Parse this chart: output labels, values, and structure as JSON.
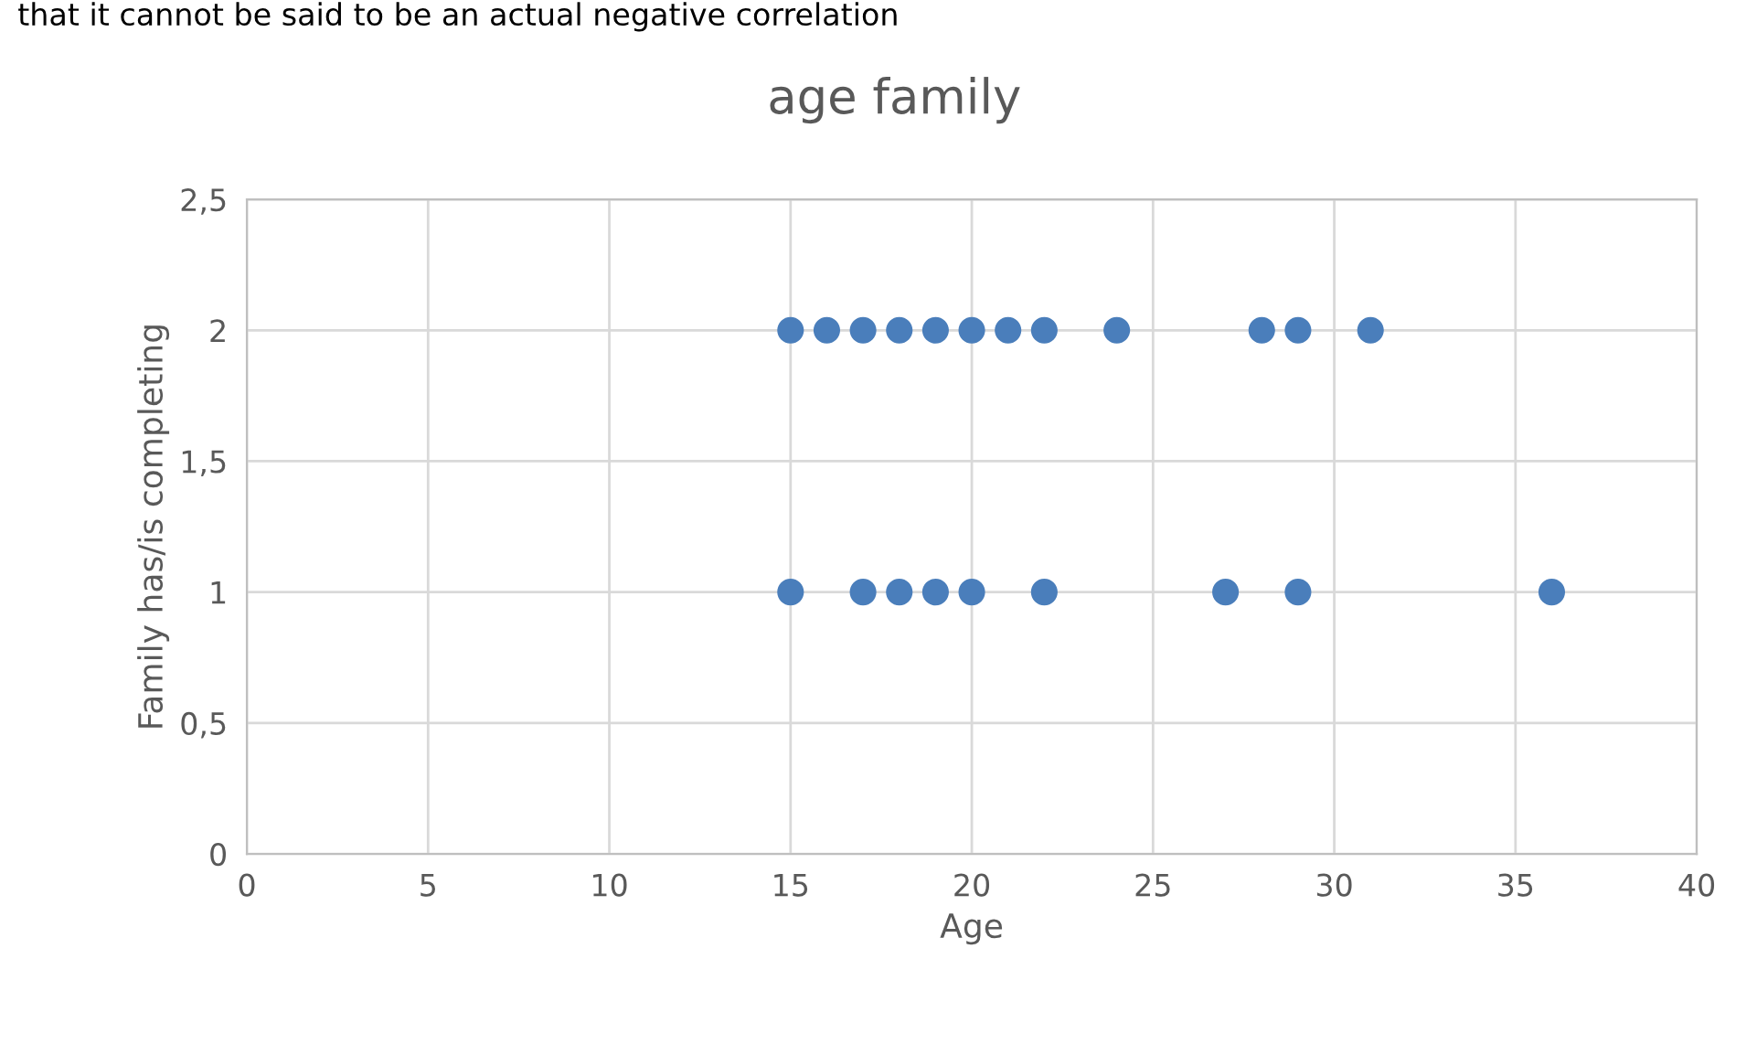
{
  "chart_data": {
    "type": "scatter",
    "title": "age family",
    "xlabel": "Age",
    "ylabel": "Family has/is completing",
    "annotations": [
      "that it cannot be said to be an actual negative correlation"
    ],
    "series": [
      {
        "color": "#4a7ebb",
        "x": [
          15,
          16,
          17,
          18,
          19,
          20,
          21,
          22,
          24,
          28,
          29,
          31,
          15,
          17,
          18,
          19,
          20,
          22,
          27,
          29,
          36
        ],
        "values": [
          2,
          2,
          2,
          2,
          2,
          2,
          2,
          2,
          2,
          2,
          2,
          2,
          1,
          1,
          1,
          1,
          1,
          1,
          1,
          1,
          1
        ]
      }
    ],
    "xlim": [
      0,
      40
    ],
    "xticks": [
      0,
      5,
      10,
      15,
      20,
      25,
      30,
      35,
      40
    ],
    "ylim": [
      0,
      2.5
    ],
    "yticks": [
      0,
      {
        "value": 0.5,
        "label": "0,5"
      },
      1,
      {
        "value": 1.5,
        "label": "1,5"
      },
      2,
      {
        "value": 2.5,
        "label": "2,5"
      }
    ],
    "grid": true,
    "marker": "circle"
  }
}
